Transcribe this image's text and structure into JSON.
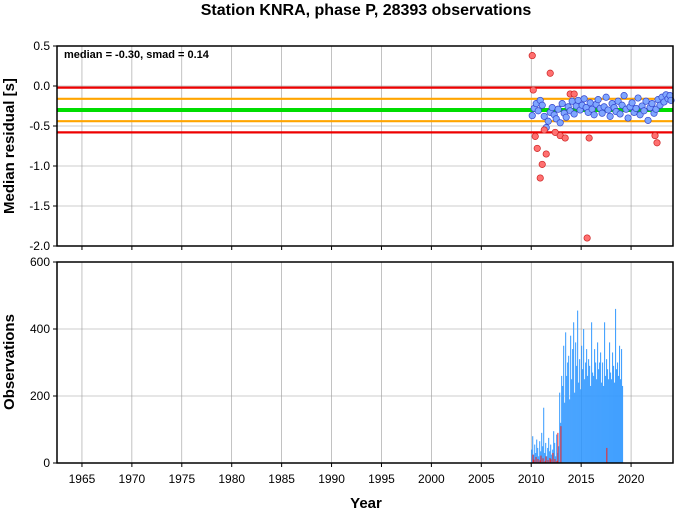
{
  "title": "Station KNRA, phase P, 28393 observations",
  "stats_label": "median = -0.30, smad = 0.14",
  "colors": {
    "red_line": "#ee0000",
    "orange_line": "#ffa500",
    "green_line": "#00dd00",
    "point_fill": "#7fa6ff",
    "point_stroke": "#3344cc",
    "outlier_fill": "#ff7070",
    "outlier_stroke": "#cc2222",
    "bar": "#3399ff",
    "bar_red": "#ee2222"
  },
  "chart_data": [
    {
      "type": "scatter",
      "ylabel": "Median residual [s]",
      "xlim": [
        1962.5,
        2024.2
      ],
      "ylim": [
        -2.0,
        0.5
      ],
      "yticks": [
        "0.5",
        "0.0",
        "-0.5",
        "-1.0",
        "-1.5",
        "-2.0"
      ],
      "xticks": [
        1965,
        1970,
        1975,
        1980,
        1985,
        1990,
        1995,
        2000,
        2005,
        2010,
        2015,
        2020
      ],
      "grid": true,
      "reference_lines": {
        "median": -0.3,
        "inner": [
          -0.16,
          -0.44
        ],
        "outer": [
          -0.02,
          -0.58
        ]
      },
      "series": [
        {
          "points": [
            [
              2010.1,
              -0.37
            ],
            [
              2010.3,
              -0.28
            ],
            [
              2010.5,
              -0.22
            ],
            [
              2010.7,
              -0.31
            ],
            [
              2010.9,
              -0.18
            ],
            [
              2011.1,
              -0.24
            ],
            [
              2011.3,
              -0.38
            ],
            [
              2011.5,
              -0.52
            ],
            [
              2011.7,
              -0.44
            ],
            [
              2011.9,
              -0.33
            ],
            [
              2012.1,
              -0.27
            ],
            [
              2012.3,
              -0.36
            ],
            [
              2012.5,
              -0.41
            ],
            [
              2012.7,
              -0.29
            ],
            [
              2012.9,
              -0.46
            ],
            [
              2013.1,
              -0.22
            ],
            [
              2013.3,
              -0.34
            ],
            [
              2013.5,
              -0.39
            ],
            [
              2013.7,
              -0.26
            ],
            [
              2013.9,
              -0.31
            ],
            [
              2014.1,
              -0.19
            ],
            [
              2014.3,
              -0.35
            ],
            [
              2014.5,
              -0.25
            ],
            [
              2014.7,
              -0.18
            ],
            [
              2014.9,
              -0.3
            ],
            [
              2015.1,
              -0.24
            ],
            [
              2015.3,
              -0.16
            ],
            [
              2015.5,
              -0.27
            ],
            [
              2015.7,
              -0.33
            ],
            [
              2015.9,
              -0.21
            ],
            [
              2016.1,
              -0.29
            ],
            [
              2016.3,
              -0.36
            ],
            [
              2016.5,
              -0.23
            ],
            [
              2016.7,
              -0.17
            ],
            [
              2016.9,
              -0.28
            ],
            [
              2017.1,
              -0.34
            ],
            [
              2017.3,
              -0.26
            ],
            [
              2017.5,
              -0.14
            ],
            [
              2017.7,
              -0.3
            ],
            [
              2017.9,
              -0.38
            ],
            [
              2018.1,
              -0.22
            ],
            [
              2018.3,
              -0.27
            ],
            [
              2018.5,
              -0.32
            ],
            [
              2018.7,
              -0.19
            ],
            [
              2018.9,
              -0.35
            ],
            [
              2019.1,
              -0.24
            ],
            [
              2019.3,
              -0.12
            ],
            [
              2019.5,
              -0.29
            ],
            [
              2019.7,
              -0.4
            ],
            [
              2019.9,
              -0.26
            ],
            [
              2020.1,
              -0.21
            ],
            [
              2020.3,
              -0.33
            ],
            [
              2020.5,
              -0.28
            ],
            [
              2020.7,
              -0.15
            ],
            [
              2020.9,
              -0.36
            ],
            [
              2021.1,
              -0.25
            ],
            [
              2021.3,
              -0.31
            ],
            [
              2021.5,
              -0.19
            ],
            [
              2021.7,
              -0.43
            ],
            [
              2021.9,
              -0.27
            ],
            [
              2022.1,
              -0.22
            ],
            [
              2022.3,
              -0.34
            ],
            [
              2022.5,
              -0.29
            ],
            [
              2022.7,
              -0.17
            ],
            [
              2022.9,
              -0.24
            ],
            [
              2023.1,
              -0.14
            ],
            [
              2023.3,
              -0.2
            ],
            [
              2023.5,
              -0.11
            ],
            [
              2023.7,
              -0.16
            ],
            [
              2023.9,
              -0.12
            ],
            [
              2024.0,
              -0.18
            ]
          ]
        },
        {
          "outliers": true,
          "points": [
            [
              2010.1,
              0.38
            ],
            [
              2010.2,
              -0.05
            ],
            [
              2010.4,
              -0.63
            ],
            [
              2010.6,
              -0.78
            ],
            [
              2010.9,
              -1.15
            ],
            [
              2011.1,
              -0.98
            ],
            [
              2011.3,
              -0.55
            ],
            [
              2011.5,
              -0.85
            ],
            [
              2011.9,
              0.16
            ],
            [
              2012.4,
              -0.58
            ],
            [
              2012.9,
              -0.62
            ],
            [
              2013.4,
              -0.65
            ],
            [
              2013.9,
              -0.1
            ],
            [
              2014.3,
              -0.1
            ],
            [
              2015.6,
              -1.9
            ],
            [
              2015.8,
              -0.65
            ],
            [
              2022.4,
              -0.62
            ],
            [
              2022.6,
              -0.71
            ]
          ]
        }
      ]
    },
    {
      "type": "bar",
      "xlabel": "Year",
      "ylabel": "Observations",
      "xlim": [
        1962.5,
        2024.2
      ],
      "ylim": [
        0,
        600
      ],
      "yticks": [
        "600",
        "400",
        "200",
        "0"
      ],
      "xticks": [
        "1965",
        "1970",
        "1975",
        "1980",
        "1985",
        "1990",
        "1995",
        "2000",
        "2005",
        "2010",
        "2015",
        "2020"
      ],
      "grid": true,
      "series": [
        {
          "name": "blue",
          "start": 2010.0,
          "step": 0.1,
          "values": [
            40,
            80,
            25,
            55,
            30,
            70,
            45,
            20,
            65,
            35,
            90,
            50,
            165,
            30,
            60,
            20,
            45,
            75,
            35,
            55,
            25,
            40,
            95,
            60,
            20,
            85,
            30,
            50,
            210,
            120,
            260,
            230,
            350,
            180,
            390,
            260,
            300,
            320,
            190,
            380,
            250,
            340,
            420,
            210,
            360,
            290,
            455,
            240,
            310,
            220,
            350,
            280,
            400,
            250,
            300,
            340,
            260,
            310,
            290,
            230,
            420,
            270,
            260,
            340,
            300,
            250,
            360,
            280,
            300,
            330,
            240,
            300,
            230,
            420,
            260,
            310,
            280,
            250,
            360,
            270,
            250,
            330,
            290,
            240,
            460,
            280,
            300,
            260,
            350,
            250,
            340,
            230
          ]
        },
        {
          "name": "red",
          "start": 2010.0,
          "step": 0.1,
          "values": [
            0,
            25,
            10,
            0,
            18,
            0,
            12,
            0,
            8,
            22,
            0,
            14,
            0,
            5,
            20,
            0,
            9,
            0,
            15,
            11,
            0,
            30,
            0,
            12,
            0,
            6,
            90,
            0,
            0,
            110,
            0,
            0,
            0,
            0,
            0,
            0,
            0,
            0,
            0,
            0,
            0,
            0,
            0,
            0,
            0,
            0,
            0,
            0,
            0,
            0,
            0,
            0,
            0,
            0,
            0,
            0,
            0,
            0,
            0,
            0,
            0,
            0,
            0,
            0,
            0,
            0,
            0,
            0,
            0,
            0,
            0,
            0,
            0,
            0,
            0,
            45,
            0,
            0,
            0,
            0,
            0,
            0,
            0,
            0,
            0,
            0,
            0,
            0,
            0,
            0,
            0,
            0
          ]
        }
      ]
    }
  ]
}
